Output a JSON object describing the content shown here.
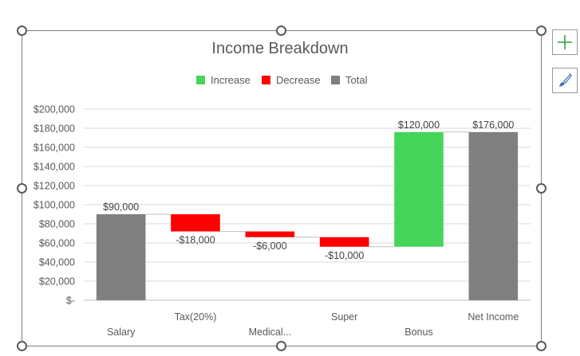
{
  "chart_data": {
    "type": "waterfall",
    "title": "Income Breakdown",
    "legend": [
      {
        "label": "Increase",
        "color": "#47d45a"
      },
      {
        "label": "Decrease",
        "color": "#ff0000"
      },
      {
        "label": "Total",
        "color": "#808080"
      }
    ],
    "legend_position": "top",
    "categories": [
      "Salary",
      "Tax(20%)",
      "Medical...",
      "Super",
      "Bonus",
      "Net Income"
    ],
    "values": [
      90000,
      -18000,
      -6000,
      -10000,
      120000,
      176000
    ],
    "kinds": [
      "total",
      "decrease",
      "decrease",
      "decrease",
      "increase",
      "total"
    ],
    "data_labels": [
      "$90,000",
      "-$18,000",
      "-$6,000",
      "-$10,000",
      "$120,000",
      "$176,000"
    ],
    "y_ticks": [
      "$-",
      "$20,000",
      "$40,000",
      "$60,000",
      "$80,000",
      "$100,000",
      "$120,000",
      "$140,000",
      "$160,000",
      "$180,000",
      "$200,000"
    ],
    "ylim": [
      0,
      200000
    ],
    "grid": true
  },
  "controls": {
    "add_element_icon": "plus-icon",
    "style_icon": "paintbrush-icon"
  }
}
